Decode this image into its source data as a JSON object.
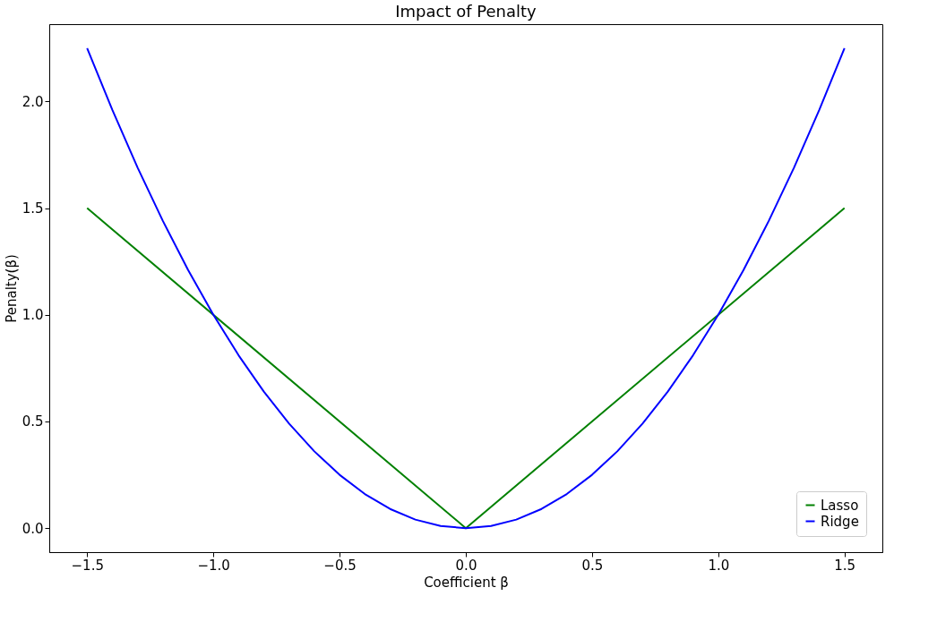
{
  "chart_data": {
    "type": "line",
    "title": "Impact of Penalty",
    "xlabel": "Coefficient β",
    "ylabel": "Penalty(β)",
    "xlim": [
      -1.65,
      1.65
    ],
    "ylim": [
      -0.1125,
      2.3625
    ],
    "xticks": [
      {
        "value": -1.5,
        "label": "−1.5"
      },
      {
        "value": -1.0,
        "label": "−1.0"
      },
      {
        "value": -0.5,
        "label": "−0.5"
      },
      {
        "value": 0,
        "label": "0.0"
      },
      {
        "value": 0.5,
        "label": "0.5"
      },
      {
        "value": 1.0,
        "label": "1.0"
      },
      {
        "value": 1.5,
        "label": "1.5"
      }
    ],
    "yticks": [
      {
        "value": 0,
        "label": "0.0"
      },
      {
        "value": 0.5,
        "label": "0.5"
      },
      {
        "value": 1.0,
        "label": "1.0"
      },
      {
        "value": 1.5,
        "label": "1.5"
      },
      {
        "value": 2.0,
        "label": "2.0"
      }
    ],
    "grid": false,
    "legend": "bottom right",
    "line_style": "solid",
    "series": [
      {
        "name": "Lasso",
        "color": "#008000",
        "x": [
          -1.5,
          0,
          1.5
        ],
        "values": [
          1.5,
          0,
          1.5
        ]
      },
      {
        "name": "Ridge",
        "color": "#0000ff",
        "x": [
          -1.5,
          -1.4,
          -1.3,
          -1.2,
          -1.1,
          -1.0,
          -0.9,
          -0.8,
          -0.7,
          -0.6,
          -0.5,
          -0.4,
          -0.3,
          -0.2,
          -0.1,
          0,
          0.1,
          0.2,
          0.3,
          0.4,
          0.5,
          0.6,
          0.7,
          0.8,
          0.9,
          1.0,
          1.1,
          1.2,
          1.3,
          1.4,
          1.5
        ],
        "values": [
          2.25,
          1.96,
          1.69,
          1.44,
          1.21,
          1.0,
          0.81,
          0.64,
          0.49,
          0.36,
          0.25,
          0.16,
          0.09,
          0.04,
          0.01,
          0,
          0.01,
          0.04,
          0.09,
          0.16,
          0.25,
          0.36,
          0.49,
          0.64,
          0.81,
          1.0,
          1.21,
          1.44,
          1.69,
          1.96,
          2.25
        ]
      }
    ]
  }
}
